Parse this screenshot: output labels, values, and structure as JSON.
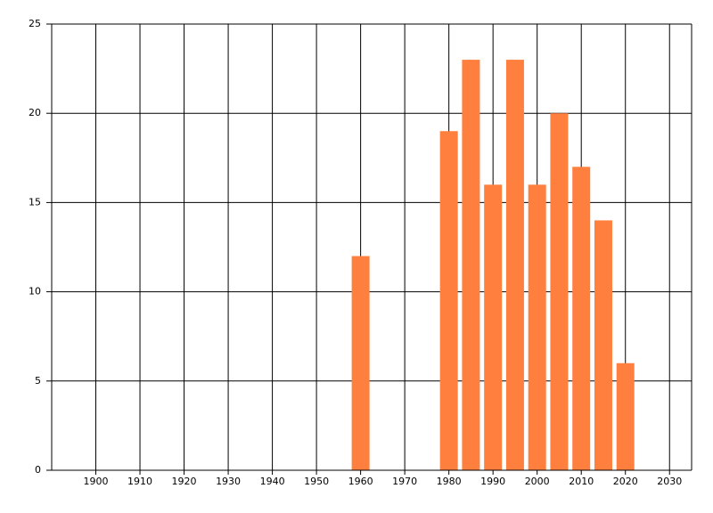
{
  "chart_data": {
    "type": "bar",
    "x": [
      1960,
      1980,
      1985,
      1990,
      1995,
      2000,
      2005,
      2010,
      2015,
      2020
    ],
    "values": [
      12,
      19,
      23,
      16,
      23,
      16,
      20,
      17,
      14,
      6
    ],
    "color": "#ff7f3f",
    "xlim": [
      1890,
      2035
    ],
    "xticks": [
      1900,
      1910,
      1920,
      1930,
      1940,
      1950,
      1960,
      1970,
      1980,
      1990,
      2000,
      2010,
      2020,
      2030
    ],
    "ylim": [
      0,
      25
    ],
    "yticks": [
      0,
      5,
      10,
      15,
      20,
      25
    ],
    "grid": true
  }
}
